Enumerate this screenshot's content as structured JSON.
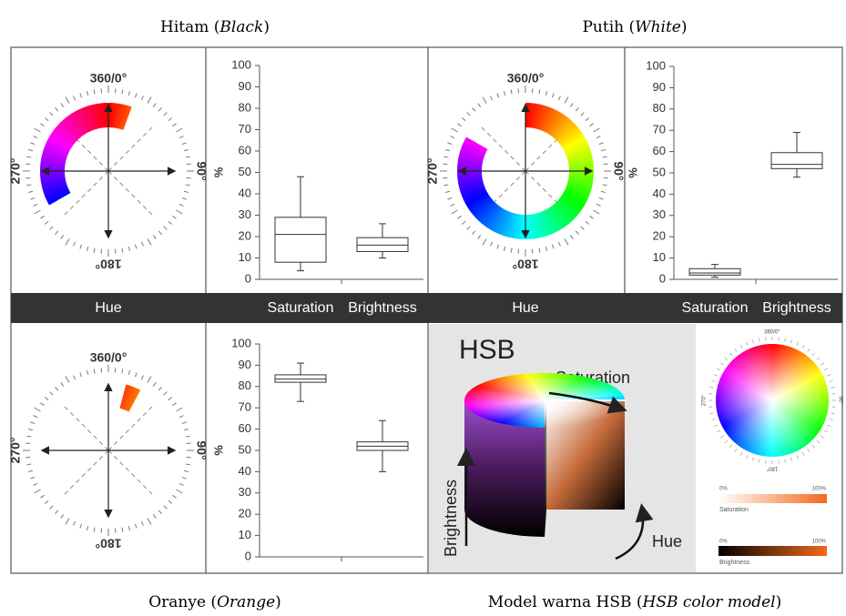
{
  "captions": [
    [
      "Hitam (",
      "Black",
      ")"
    ],
    [
      "Putih (",
      "White",
      ")"
    ],
    [
      "Oranye (",
      "Orange",
      ")"
    ],
    [
      "Model warna HSB (",
      "HSB color model",
      ")"
    ]
  ],
  "chart_data": [
    {
      "type": "hue-wheel",
      "xlabel": "Hue",
      "hue_range": [
        240,
        380
      ],
      "ticks": [
        {
          "value": 0,
          "label": "360/0°"
        },
        {
          "value": 90,
          "label": "90°"
        },
        {
          "value": 180,
          "label": "180°"
        },
        {
          "value": 270,
          "label": "270°"
        }
      ]
    },
    {
      "type": "box",
      "ylabel": "%",
      "categories": [
        "Saturation",
        "Brightness"
      ],
      "boxes": [
        {
          "min": 4,
          "q1": 8,
          "median": 21,
          "q3": 29,
          "max": 48
        },
        {
          "min": 10,
          "q1": 13,
          "median": 16,
          "q3": 19.5,
          "max": 26
        }
      ],
      "ylim": [
        0,
        100
      ],
      "yticks": [
        0,
        10,
        20,
        30,
        40,
        50,
        60,
        70,
        80,
        90,
        100
      ]
    },
    {
      "type": "hue-wheel",
      "xlabel": "Hue",
      "hue_range": [
        0,
        300
      ],
      "ticks": [
        {
          "value": 0,
          "label": "360/0°"
        },
        {
          "value": 90,
          "label": "90°"
        },
        {
          "value": 180,
          "label": "180°"
        },
        {
          "value": 270,
          "label": "270°"
        }
      ]
    },
    {
      "type": "box",
      "ylabel": "%",
      "categories": [
        "Saturation",
        "Brightness"
      ],
      "boxes": [
        {
          "min": 1,
          "q1": 2,
          "median": 3,
          "q3": 5,
          "max": 7
        },
        {
          "min": 48,
          "q1": 52,
          "median": 54,
          "q3": 59.5,
          "max": 69
        }
      ],
      "ylim": [
        0,
        100
      ],
      "yticks": [
        0,
        10,
        20,
        30,
        40,
        50,
        60,
        70,
        80,
        90,
        100
      ]
    },
    {
      "type": "hue-wheel",
      "hue_range": [
        15,
        28
      ],
      "ticks": [
        {
          "value": 0,
          "label": "360/0°"
        },
        {
          "value": 90,
          "label": "90°"
        },
        {
          "value": 180,
          "label": "180°"
        },
        {
          "value": 270,
          "label": "270°"
        }
      ]
    },
    {
      "type": "box",
      "ylabel": "%",
      "categories": [
        null,
        null
      ],
      "boxes": [
        {
          "min": 73,
          "q1": 82,
          "median": 83.5,
          "q3": 85.5,
          "max": 91
        },
        {
          "min": 40,
          "q1": 50,
          "median": 52,
          "q3": 54,
          "max": 64
        }
      ],
      "ylim": [
        0,
        100
      ],
      "yticks": [
        0,
        10,
        20,
        30,
        40,
        50,
        60,
        70,
        80,
        90,
        100
      ]
    }
  ],
  "hsb_model": {
    "title": "HSB",
    "saturation": "Saturation",
    "brightness": "Brightness",
    "hue": "Hue",
    "wheel_ticks": [
      "360/0°",
      "90°",
      "180°",
      "270°"
    ],
    "sat_bar": {
      "min": "0%",
      "max": "100%",
      "label": "Saturation"
    },
    "bri_bar": {
      "min": "0%",
      "max": "100%",
      "label": "Brightness"
    }
  }
}
